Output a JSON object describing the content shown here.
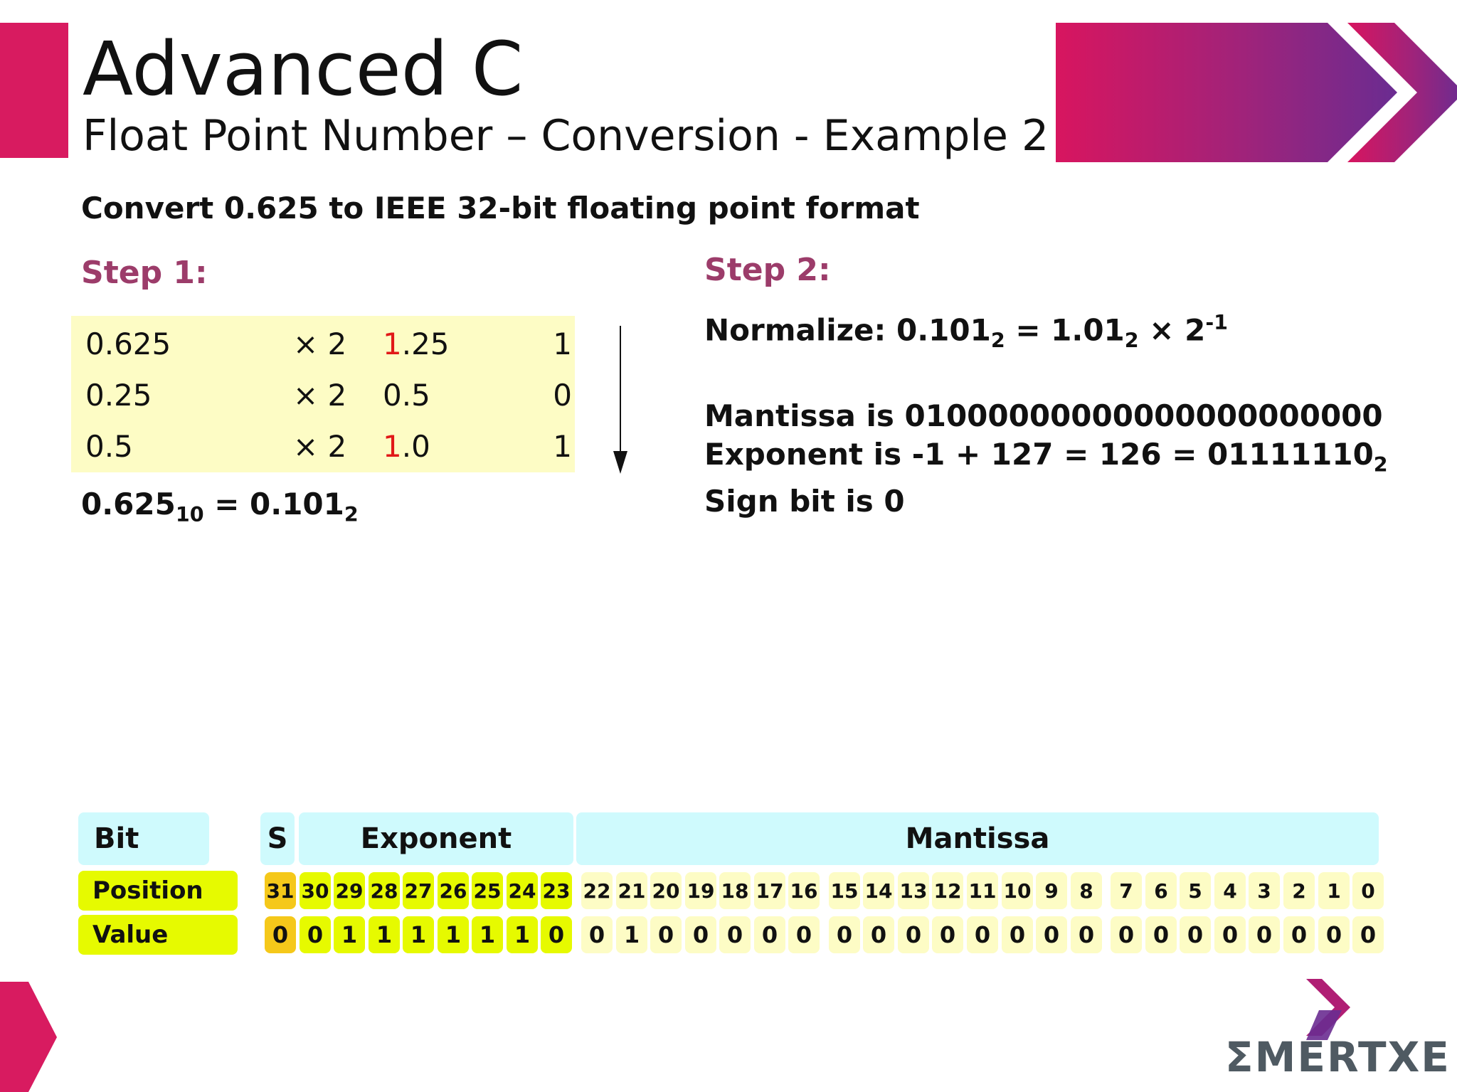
{
  "header": {
    "title": "Advanced C",
    "subtitle": "Float Point Number – Conversion - Example 2"
  },
  "task": "Convert 0.625 to IEEE 32-bit floating point format",
  "step1": {
    "label": "Step 1:",
    "rows": [
      {
        "num": "0.625",
        "mul": "× 2",
        "res_int": "1",
        "res_frac": ".25",
        "res_int_red": true,
        "bit": "1"
      },
      {
        "num": "0.25",
        "mul": "× 2",
        "res_int": "0",
        "res_frac": ".5",
        "res_int_red": false,
        "bit": "0"
      },
      {
        "num": "0.5",
        "mul": "× 2",
        "res_int": "1",
        "res_frac": ".0",
        "res_int_red": true,
        "bit": "1"
      }
    ],
    "result": {
      "lhs": "0.625",
      "lhs_sub": "10",
      "eq": " = ",
      "rhs": "0.101",
      "rhs_sub": "2"
    }
  },
  "step2": {
    "label": "Step 2:",
    "normalize": {
      "prefix": "Normalize: 0.101",
      "sub1": "2",
      "mid": " = 1.01",
      "sub2": "2",
      "times": " × 2",
      "sup": "-1"
    },
    "mantissa": "Mantissa is 01000000000000000000000",
    "exponent": {
      "text": "Exponent is -1 + 127 = 126 = 01111110",
      "sub": "2"
    },
    "sign": "Sign bit is 0"
  },
  "bit_table": {
    "bit_label": "Bit",
    "sign_label": "S",
    "exponent_label": "Exponent",
    "mantissa_label": "Mantissa",
    "position_label": "Position",
    "value_label": "Value",
    "positions": [
      "31",
      "30",
      "29",
      "28",
      "27",
      "26",
      "25",
      "24",
      "23",
      "22",
      "21",
      "20",
      "19",
      "18",
      "17",
      "16",
      "15",
      "14",
      "13",
      "12",
      "11",
      "10",
      "9",
      "8",
      "7",
      "6",
      "5",
      "4",
      "3",
      "2",
      "1",
      "0"
    ],
    "values": [
      "0",
      "0",
      "1",
      "1",
      "1",
      "1",
      "1",
      "1",
      "0",
      "0",
      "1",
      "0",
      "0",
      "0",
      "0",
      "0",
      "0",
      "0",
      "0",
      "0",
      "0",
      "0",
      "0",
      "0",
      "0",
      "0",
      "0",
      "0",
      "0",
      "0",
      "0",
      "0"
    ],
    "colors": {
      "sign": "#f5c81a",
      "exponent": "#e6fa00",
      "mantissa": "#fdfcc5",
      "header": "#cffafd"
    }
  },
  "brand": {
    "logo_text": "ΣMERTXE",
    "accent": "#d81b60",
    "purple": "#6a2c91"
  }
}
